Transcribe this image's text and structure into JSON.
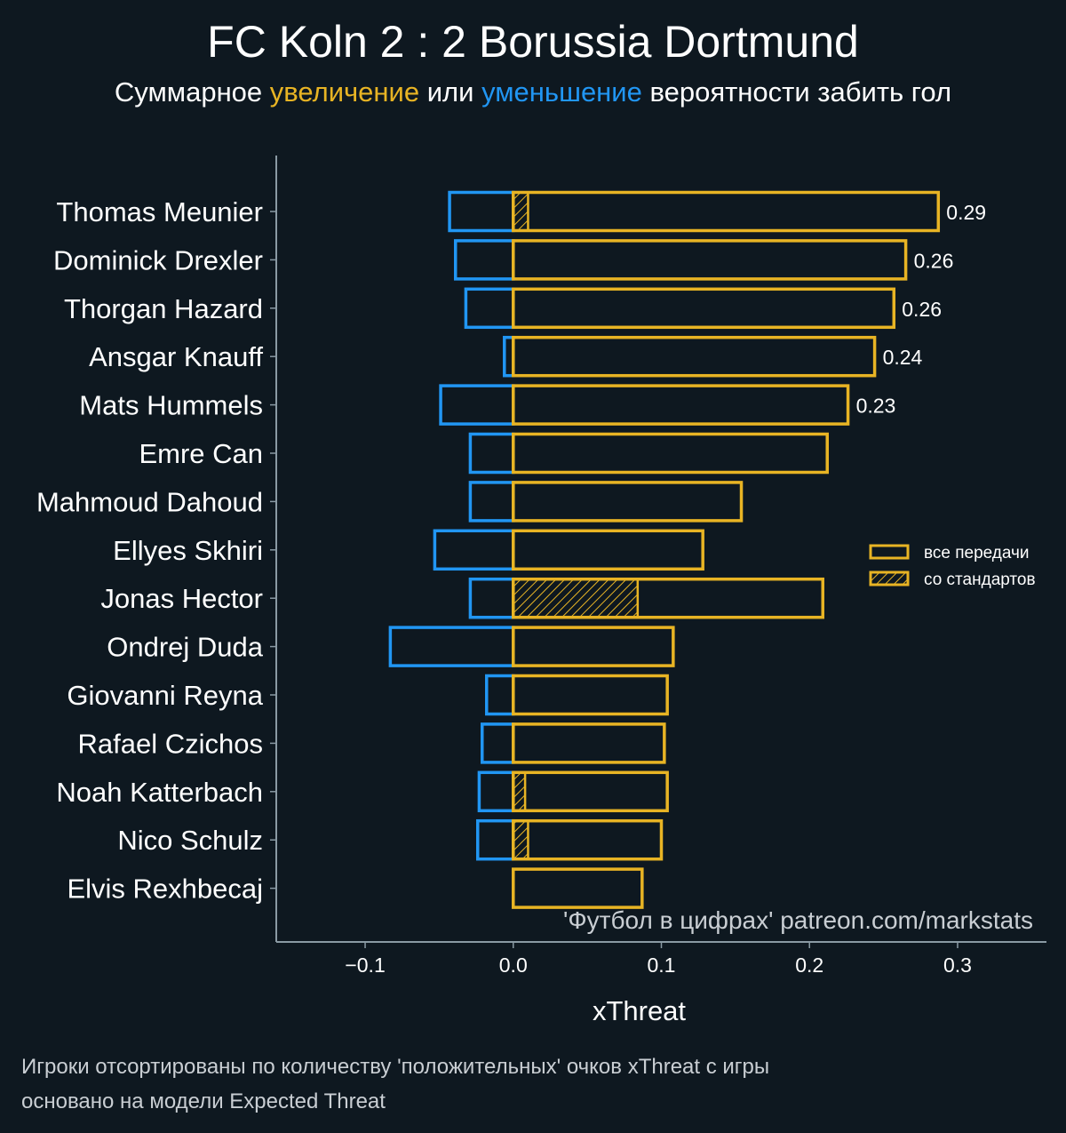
{
  "title": "FC Koln 2 : 2 Borussia Dortmund",
  "subtitle": {
    "prefix": "Суммарное",
    "increase": "увеличение",
    "middle": "или",
    "decrease": "уменьшение",
    "suffix": "вероятности забить гол"
  },
  "colors": {
    "background": "#0e1820",
    "positive": "#e8b424",
    "negative": "#2196f3",
    "axis": "#8a9aa4",
    "text": "#ffffff",
    "watermark": "#c9ced3"
  },
  "chart_data": {
    "type": "bar",
    "orientation": "horizontal",
    "xlabel": "xThreat",
    "ylabel": "",
    "xlim": [
      -0.16,
      0.36
    ],
    "xticks": [
      -0.1,
      0.0,
      0.1,
      0.2,
      0.3
    ],
    "xtick_labels": [
      "−0.1",
      "0.0",
      "0.1",
      "0.2",
      "0.3"
    ],
    "categories": [
      "Thomas Meunier",
      "Dominick Drexler",
      "Thorgan Hazard",
      "Ansgar Knauff",
      "Mats Hummels",
      "Emre Can",
      "Mahmoud Dahoud",
      "Ellyes Skhiri",
      "Jonas Hector",
      "Ondrej Duda",
      "Giovanni Reyna",
      "Rafael Czichos",
      "Noah Katterbach",
      "Nico Schulz",
      "Elvis Rexhbecaj"
    ],
    "series": [
      {
        "name": "все передачи",
        "values": [
          0.287,
          0.265,
          0.257,
          0.244,
          0.226,
          0.212,
          0.154,
          0.128,
          0.209,
          0.108,
          0.104,
          0.102,
          0.104,
          0.1,
          0.087
        ]
      },
      {
        "name": "со стандартов",
        "values": [
          0.01,
          0.0,
          0.0,
          0.0,
          0.0,
          0.0,
          0.0,
          0.0,
          0.084,
          0.0,
          0.0,
          0.0,
          0.008,
          0.01,
          0.0
        ]
      },
      {
        "name": "уменьшение",
        "values": [
          -0.043,
          -0.039,
          -0.032,
          -0.006,
          -0.049,
          -0.029,
          -0.029,
          -0.053,
          -0.029,
          -0.083,
          -0.018,
          -0.021,
          -0.023,
          -0.024,
          0.0
        ]
      }
    ],
    "value_labels": [
      "0.29",
      "0.26",
      "0.26",
      "0.24",
      "0.23"
    ],
    "legend": {
      "position": "right",
      "entries": [
        "все передачи",
        "со стандартов"
      ]
    },
    "watermark": "'Футбол в цифрах' patreon.com/markstats"
  },
  "footnotes": [
    "Игроки отсортированы по количеству 'положительных' очков xThreat с игры",
    "основано на модели Expected Threat"
  ]
}
